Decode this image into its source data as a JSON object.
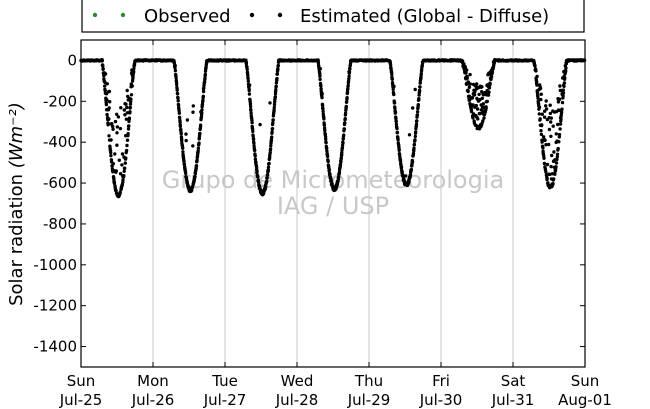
{
  "chart_data": {
    "type": "scatter",
    "ylabel": "Solar radiation",
    "ylabel_unit": "(Wm⁻²)",
    "ylim": [
      -1500,
      100
    ],
    "yticks": [
      0,
      -200,
      -400,
      -600,
      -800,
      -1000,
      -1200,
      -1400
    ],
    "x_range_days": [
      0,
      7
    ],
    "xticks": [
      {
        "day": 0,
        "weekday": "Sun",
        "date": "Jul-25"
      },
      {
        "day": 1,
        "weekday": "Mon",
        "date": "Jul-26"
      },
      {
        "day": 2,
        "weekday": "Tue",
        "date": "Jul-27"
      },
      {
        "day": 3,
        "weekday": "Wed",
        "date": "Jul-28"
      },
      {
        "day": 4,
        "weekday": "Thu",
        "date": "Jul-29"
      },
      {
        "day": 5,
        "weekday": "Fri",
        "date": "Jul-30"
      },
      {
        "day": 6,
        "weekday": "Sat",
        "date": "Jul-31"
      },
      {
        "day": 7,
        "weekday": "Sun",
        "date": "Aug-01"
      }
    ],
    "grid": "vertical",
    "legend_placement": "top",
    "series": [
      {
        "name": "Observed",
        "color": "#2e8b2e",
        "marker": "dot",
        "points": []
      },
      {
        "name": "Estimated (Global - Diffuse)",
        "color": "#000000",
        "marker": "dot",
        "daily_minimum": [
          {
            "date": "Jul-25",
            "value": -660
          },
          {
            "date": "Jul-26",
            "value": -635
          },
          {
            "date": "Jul-27",
            "value": -650
          },
          {
            "date": "Jul-28",
            "value": -630
          },
          {
            "date": "Jul-29",
            "value": -610
          },
          {
            "date": "Jul-30",
            "value": -330
          },
          {
            "date": "Jul-31",
            "value": -620
          }
        ]
      }
    ],
    "watermark": [
      "Grupo de Micrometeorologia",
      "IAG / USP"
    ]
  }
}
